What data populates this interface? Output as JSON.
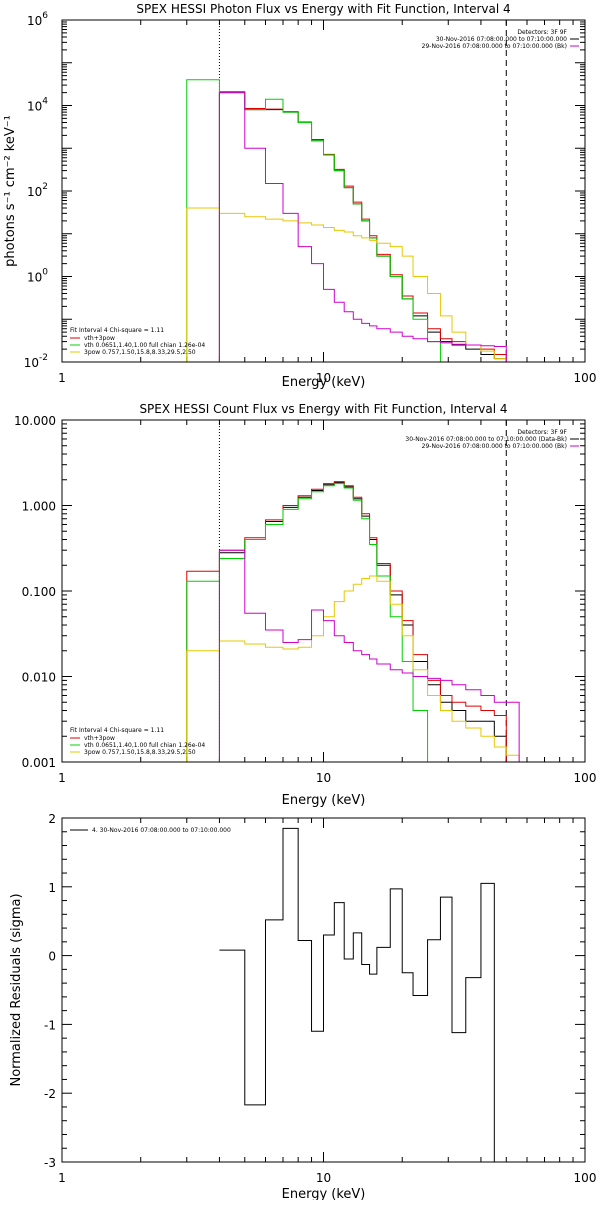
{
  "chart_data": [
    {
      "type": "line",
      "title": "SPEX HESSI Photon Flux vs Energy with Fit Function, Interval 4",
      "xlabel": "Energy (keV)",
      "ylabel": "photons s⁻¹ cm⁻² keV⁻¹",
      "xscale": "log",
      "yscale": "log",
      "xlim": [
        1,
        100
      ],
      "ylim": [
        0.01,
        1000000
      ],
      "xticks": [
        "1",
        "10",
        "100"
      ],
      "yticks": [
        {
          "value": 0.01,
          "label": "10",
          "exp": "-2"
        },
        {
          "value": 1,
          "label": "10",
          "exp": "0"
        },
        {
          "value": 100,
          "label": "10",
          "exp": "2"
        },
        {
          "value": 10000,
          "label": "10",
          "exp": "4"
        },
        {
          "value": 1000000,
          "label": "10",
          "exp": "6"
        }
      ],
      "vlines": [
        {
          "x": 4,
          "style": "dotted"
        },
        {
          "x": 50,
          "style": "dashed"
        }
      ],
      "legend_top": [
        "Detectors: 3F 9F",
        "30-Nov-2016 07:08:00.000 to 07:10:00.000",
        "29-Nov-2016 07:08:00.000 to 07:10:00.000 (Bk)"
      ],
      "legend_top_colors": [
        "#000000",
        "#d000d0"
      ],
      "legend_bottom_head": "Fit Interval 4   Chi-square = 1.11",
      "legend_bottom": [
        "vth+3pow",
        "vth 0.0651,1.40,1.00  full chian 1.26e-04",
        "3pow 0.757,1.50,15.8,8.33,29.5,2.50"
      ],
      "legend_bottom_colors": [
        "#e00000",
        "#00d000",
        "#e8c800"
      ],
      "edges": [
        3.0,
        4.0,
        5.0,
        6.0,
        7.0,
        8.0,
        9.0,
        10.0,
        11.0,
        12.0,
        13.0,
        14.0,
        15.0,
        16.0,
        18.0,
        20.0,
        22.0,
        25.0,
        28.0,
        31.0,
        35.0,
        40.0,
        45.0,
        50.0,
        56.0,
        62.0,
        70.0
      ],
      "series": [
        {
          "color": "#000000",
          "start": 1,
          "values": [
            20000,
            8000,
            8000,
            7000,
            4000,
            1500,
            700,
            300,
            120,
            50,
            20,
            8,
            3,
            1,
            0.3,
            0.12,
            0.05,
            0.03,
            0.025,
            0.02,
            0.015,
            0.012
          ]
        },
        {
          "color": "#e00000",
          "start": 1,
          "values": [
            21000,
            8500,
            8200,
            7200,
            4100,
            1600,
            720,
            320,
            130,
            55,
            22,
            9,
            3.3,
            1.1,
            0.35,
            0.14,
            0.06,
            0.035,
            0.03,
            0.025,
            0.02,
            0.015
          ]
        },
        {
          "color": "#00d000",
          "start": 0,
          "values": [
            40000,
            20000,
            8000,
            14000,
            7000,
            4000,
            1500,
            700,
            300,
            120,
            50,
            20,
            8,
            3,
            1,
            0.3,
            0.1,
            0.03,
            0.01,
            0.005
          ]
        },
        {
          "color": "#e8c800",
          "start": 0,
          "values": [
            40,
            30,
            25,
            22,
            20,
            18,
            16,
            14,
            12,
            11,
            9,
            8,
            7,
            6,
            5,
            3,
            1,
            0.4,
            0.12,
            0.05,
            0.025,
            0.018,
            0.012,
            0.009,
            0.006,
            0.004
          ]
        },
        {
          "color": "#d000d0",
          "start": 1,
          "values": [
            20000,
            1000,
            150,
            30,
            5,
            2,
            0.5,
            0.25,
            0.15,
            0.1,
            0.08,
            0.07,
            0.06,
            0.05,
            0.04,
            0.035,
            0.03,
            0.028,
            0.026,
            0.025,
            0.024,
            0.023
          ]
        }
      ]
    },
    {
      "type": "line",
      "title": "SPEX HESSI Count Flux vs Energy with Fit Function, Interval 4",
      "xlabel": "Energy (keV)",
      "ylabel": "",
      "xscale": "log",
      "yscale": "log",
      "xlim": [
        1,
        100
      ],
      "ylim": [
        0.001,
        10
      ],
      "xticks": [
        "1",
        "10",
        "100"
      ],
      "yticks": [
        {
          "value": 0.001,
          "label": "0.001"
        },
        {
          "value": 0.01,
          "label": "0.010"
        },
        {
          "value": 0.1,
          "label": "0.100"
        },
        {
          "value": 1,
          "label": "1.000"
        },
        {
          "value": 10,
          "label": "10.000"
        }
      ],
      "vlines": [
        {
          "x": 4,
          "style": "dotted"
        },
        {
          "x": 50,
          "style": "dashed"
        }
      ],
      "legend_top": [
        "Detectors: 3F 9F",
        "30-Nov-2016 07:08:00.000 to 07:10:00.000 (Data-Bk)",
        "29-Nov-2016 07:08:00.000 to 07:10:00.000 (Bk)"
      ],
      "legend_top_colors": [
        "#000000",
        "#d000d0"
      ],
      "legend_bottom_head": "Fit Interval 4   Chi-square = 1.11",
      "legend_bottom": [
        "vth+3pow",
        "vth 0.0651,1.40,1.00  full chian 1.26e-04",
        "3pow 0.757,1.50,15.8,8.33,29.5,2.50"
      ],
      "legend_bottom_colors": [
        "#e00000",
        "#00d000",
        "#e8c800"
      ],
      "edges": [
        3.0,
        4.0,
        5.0,
        6.0,
        7.0,
        8.0,
        9.0,
        10.0,
        11.0,
        12.0,
        13.0,
        14.0,
        15.0,
        16.0,
        18.0,
        20.0,
        22.0,
        25.0,
        28.0,
        31.0,
        35.0,
        40.0,
        45.0,
        50.0,
        56.0,
        62.0,
        70.0
      ],
      "series": [
        {
          "color": "#000000",
          "start": 1,
          "values": [
            0.28,
            0.4,
            0.65,
            0.95,
            1.25,
            1.5,
            1.75,
            1.85,
            1.65,
            1.2,
            0.75,
            0.4,
            0.2,
            0.09,
            0.04,
            0.015,
            0.008,
            0.005,
            0.004,
            0.003,
            0.003,
            0.002
          ]
        },
        {
          "color": "#e00000",
          "start": 0,
          "values": [
            0.17,
            0.3,
            0.42,
            0.68,
            1.0,
            1.3,
            1.55,
            1.8,
            1.9,
            1.7,
            1.25,
            0.8,
            0.42,
            0.21,
            0.1,
            0.045,
            0.018,
            0.009,
            0.006,
            0.005,
            0.0045,
            0.004,
            0.0035
          ]
        },
        {
          "color": "#00d000",
          "start": 0,
          "values": [
            0.13,
            0.24,
            0.4,
            0.6,
            0.9,
            1.2,
            1.45,
            1.7,
            1.8,
            1.6,
            1.15,
            0.7,
            0.35,
            0.15,
            0.05,
            0.015,
            0.004,
            0.001
          ]
        },
        {
          "color": "#e8c800",
          "start": 0,
          "values": [
            0.02,
            0.026,
            0.024,
            0.022,
            0.021,
            0.022,
            0.03,
            0.05,
            0.075,
            0.1,
            0.12,
            0.14,
            0.15,
            0.13,
            0.07,
            0.03,
            0.012,
            0.006,
            0.004,
            0.003,
            0.0025,
            0.002,
            0.0015,
            0.0012,
            0.001
          ]
        },
        {
          "color": "#d000d0",
          "start": 1,
          "values": [
            0.3,
            0.055,
            0.035,
            0.025,
            0.027,
            0.06,
            0.045,
            0.03,
            0.025,
            0.02,
            0.018,
            0.016,
            0.014,
            0.012,
            0.011,
            0.01,
            0.0095,
            0.009,
            0.008,
            0.007,
            0.006,
            0.005,
            0.005
          ]
        }
      ]
    },
    {
      "type": "line",
      "title": "",
      "xlabel": "Energy (keV)",
      "ylabel": "Normalized Residuals (sigma)",
      "xscale": "log",
      "yscale": "linear",
      "xlim": [
        1,
        100
      ],
      "ylim": [
        -3,
        2
      ],
      "xticks": [
        "1",
        "10",
        "100"
      ],
      "yticks": [
        {
          "value": -3,
          "label": "-3"
        },
        {
          "value": -2,
          "label": "-2"
        },
        {
          "value": -1,
          "label": "-1"
        },
        {
          "value": 0,
          "label": "0"
        },
        {
          "value": 1,
          "label": "1"
        },
        {
          "value": 2,
          "label": "2"
        }
      ],
      "vlines": [],
      "legend_top": [
        "4. 30-Nov-2016 07:08:00.000 to 07:10:00.000"
      ],
      "legend_top_colors": [
        "#000000"
      ],
      "legend_bottom_head": "",
      "legend_bottom": [],
      "legend_bottom_colors": [],
      "edges": [
        4.0,
        5.0,
        6.0,
        7.0,
        8.0,
        9.0,
        10.0,
        11.0,
        12.0,
        13.0,
        14.0,
        15.0,
        16.0,
        18.0,
        20.0,
        22.0,
        25.0,
        28.0,
        31.0,
        35.0,
        40.0,
        45.0,
        50.0
      ],
      "series": [
        {
          "color": "#000000",
          "start": 0,
          "values": [
            0.08,
            -2.17,
            0.52,
            1.85,
            0.22,
            -1.1,
            0.3,
            0.77,
            -0.05,
            0.33,
            -0.13,
            -0.27,
            0.12,
            0.97,
            -0.25,
            -0.58,
            0.23,
            0.85,
            -1.12,
            -0.32,
            1.05,
            -3.0
          ]
        }
      ]
    }
  ]
}
